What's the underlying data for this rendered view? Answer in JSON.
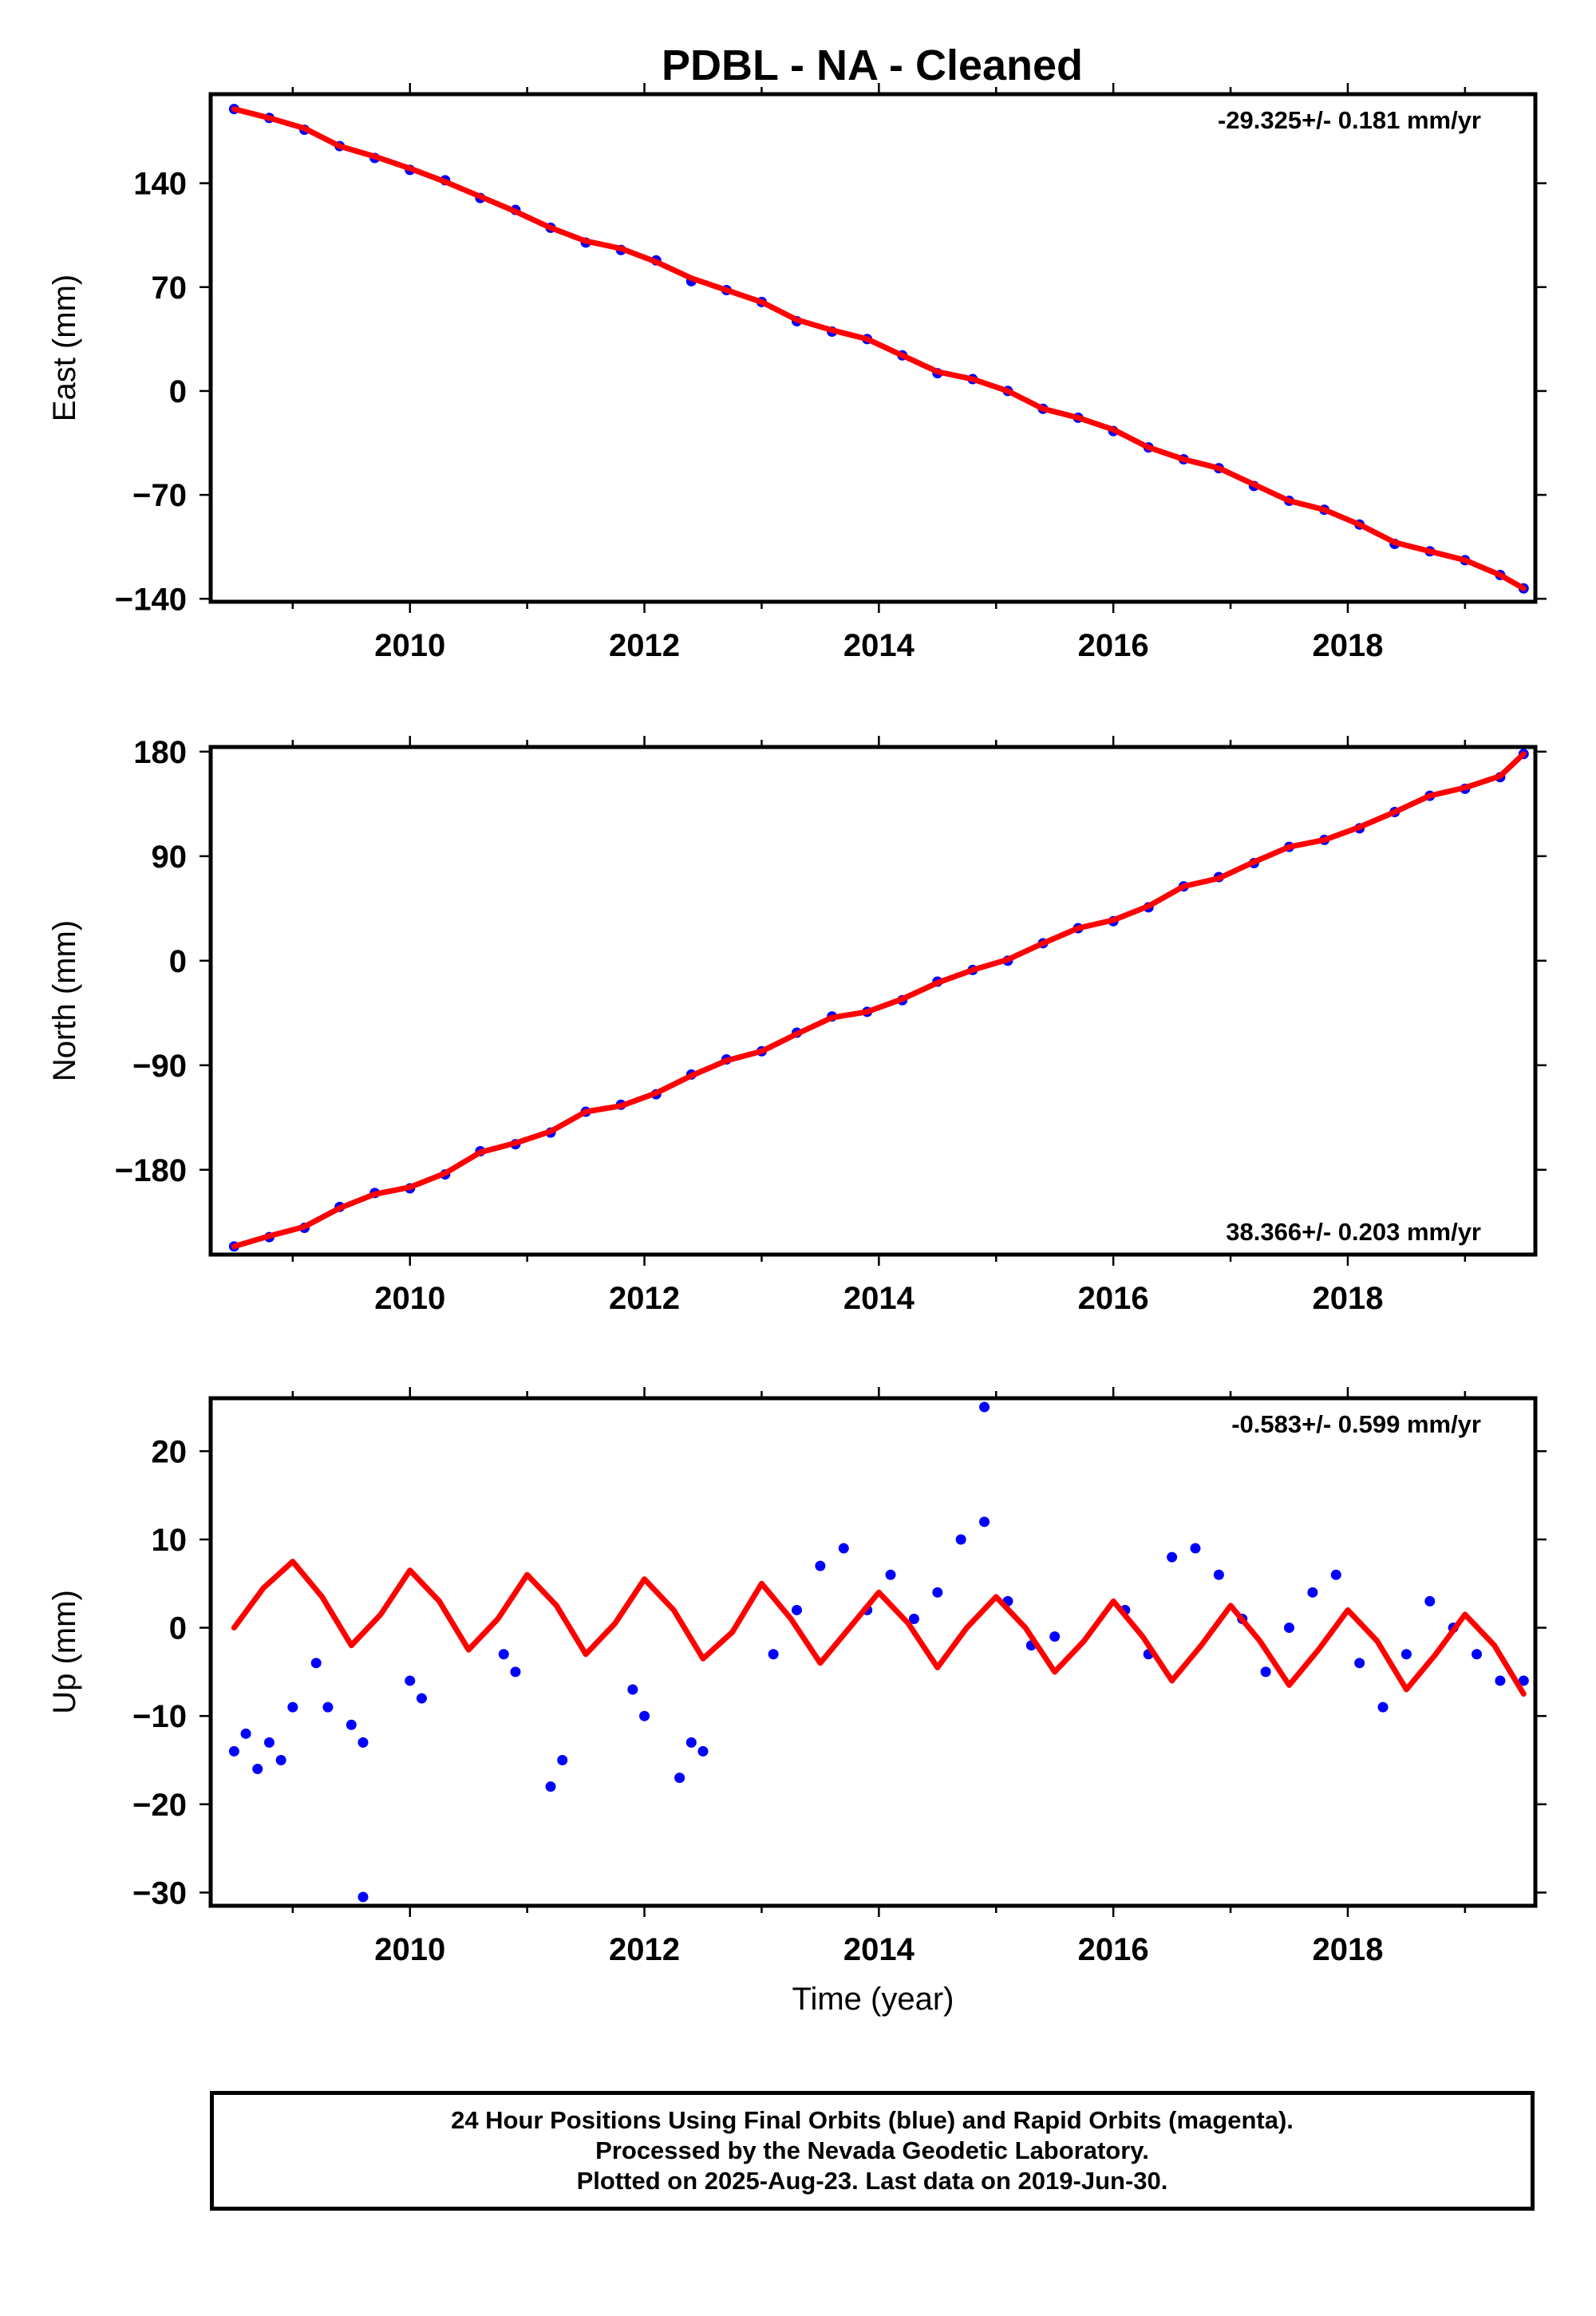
{
  "chart_data": [
    {
      "type": "scatter",
      "title": "PDBL  - NA - Cleaned",
      "ylabel": "East (mm)",
      "xlabel": "",
      "rate_label": "-29.325+/- 0.181 mm/yr",
      "xlim": [
        2008.3,
        2019.6
      ],
      "ylim": [
        -142,
        200
      ],
      "x_ticks": [
        2010,
        2012,
        2014,
        2016,
        2018
      ],
      "y_ticks": [
        -140,
        -70,
        0,
        70,
        140
      ],
      "grid": false,
      "series": [
        {
          "name": "",
          "color": "#0000ff",
          "style": "points",
          "x": [
            2008.5,
            2008.8,
            2009.1,
            2009.4,
            2009.7,
            2010.0,
            2010.3,
            2010.6,
            2010.9,
            2011.2,
            2011.5,
            2011.8,
            2012.1,
            2012.4,
            2012.7,
            2013.0,
            2013.3,
            2013.6,
            2013.9,
            2014.2,
            2014.5,
            2014.8,
            2015.1,
            2015.4,
            2015.7,
            2016.0,
            2016.3,
            2016.6,
            2016.9,
            2017.2,
            2017.5,
            2017.8,
            2018.1,
            2018.4,
            2018.7,
            2019.0,
            2019.3,
            2019.5
          ],
          "y": [
            190,
            184,
            176,
            165,
            157,
            149,
            142,
            130,
            122,
            110,
            100,
            95,
            88,
            74,
            68,
            60,
            47,
            40,
            35,
            24,
            12,
            8,
            0,
            -12,
            -18,
            -27,
            -38,
            -46,
            -52,
            -64,
            -74,
            -80,
            -90,
            -103,
            -108,
            -114,
            -124,
            -133
          ]
        },
        {
          "name": "",
          "color": "#ff0000",
          "style": "line",
          "x": [
            2008.5,
            2008.8,
            2009.1,
            2009.4,
            2009.7,
            2010.0,
            2010.3,
            2010.6,
            2010.9,
            2011.2,
            2011.5,
            2011.8,
            2012.1,
            2012.4,
            2012.7,
            2013.0,
            2013.3,
            2013.6,
            2013.9,
            2014.2,
            2014.5,
            2014.8,
            2015.1,
            2015.4,
            2015.7,
            2016.0,
            2016.3,
            2016.6,
            2016.9,
            2017.2,
            2017.5,
            2017.8,
            2018.1,
            2018.4,
            2018.7,
            2019.0,
            2019.3,
            2019.5
          ],
          "y": [
            190,
            184,
            177,
            165,
            158,
            150,
            141,
            131,
            121,
            110,
            101,
            96,
            87,
            76,
            68,
            60,
            48,
            41,
            35,
            24,
            13,
            8,
            0,
            -12,
            -18,
            -26,
            -38,
            -46,
            -52,
            -63,
            -74,
            -80,
            -90,
            -102,
            -108,
            -114,
            -124,
            -133
          ]
        }
      ]
    },
    {
      "type": "scatter",
      "title": "",
      "ylabel": "North (mm)",
      "xlabel": "",
      "rate_label": "38.366+/- 0.203 mm/yr",
      "xlim": [
        2008.3,
        2019.6
      ],
      "ylim": [
        -253,
        184
      ],
      "x_ticks": [
        2010,
        2012,
        2014,
        2016,
        2018
      ],
      "y_ticks": [
        -180,
        -90,
        0,
        90,
        180
      ],
      "grid": false,
      "series": [
        {
          "name": "",
          "color": "#0000ff",
          "style": "points",
          "x": [
            2008.5,
            2008.8,
            2009.1,
            2009.4,
            2009.7,
            2010.0,
            2010.3,
            2010.6,
            2010.9,
            2011.2,
            2011.5,
            2011.8,
            2012.1,
            2012.4,
            2012.7,
            2013.0,
            2013.3,
            2013.6,
            2013.9,
            2014.2,
            2014.5,
            2014.8,
            2015.1,
            2015.4,
            2015.7,
            2016.0,
            2016.3,
            2016.6,
            2016.9,
            2017.2,
            2017.5,
            2017.8,
            2018.1,
            2018.4,
            2018.7,
            2019.0,
            2019.3,
            2019.5
          ],
          "y": [
            -246,
            -238,
            -230,
            -212,
            -200,
            -196,
            -184,
            -164,
            -158,
            -148,
            -130,
            -124,
            -115,
            -98,
            -85,
            -78,
            -62,
            -48,
            -44,
            -34,
            -18,
            -8,
            0,
            15,
            28,
            34,
            46,
            64,
            72,
            84,
            98,
            104,
            114,
            128,
            142,
            148,
            158,
            178
          ]
        },
        {
          "name": "",
          "color": "#ff0000",
          "style": "line",
          "x": [
            2008.5,
            2008.8,
            2009.1,
            2009.4,
            2009.7,
            2010.0,
            2010.3,
            2010.6,
            2010.9,
            2011.2,
            2011.5,
            2011.8,
            2012.1,
            2012.4,
            2012.7,
            2013.0,
            2013.3,
            2013.6,
            2013.9,
            2014.2,
            2014.5,
            2014.8,
            2015.1,
            2015.4,
            2015.7,
            2016.0,
            2016.3,
            2016.6,
            2016.9,
            2017.2,
            2017.5,
            2017.8,
            2018.1,
            2018.4,
            2018.7,
            2019.0,
            2019.3,
            2019.5
          ],
          "y": [
            -246,
            -237,
            -229,
            -213,
            -201,
            -195,
            -183,
            -165,
            -157,
            -147,
            -130,
            -125,
            -114,
            -99,
            -86,
            -78,
            -63,
            -49,
            -44,
            -33,
            -19,
            -8,
            1,
            15,
            28,
            35,
            47,
            64,
            71,
            85,
            98,
            104,
            115,
            128,
            142,
            149,
            159,
            178
          ]
        }
      ]
    },
    {
      "type": "scatter",
      "title": "",
      "ylabel": "Up (mm)",
      "xlabel": "Time (year)",
      "rate_label": "-0.583+/- 0.599 mm/yr",
      "xlim": [
        2008.3,
        2019.6
      ],
      "ylim": [
        -31.5,
        26
      ],
      "x_ticks": [
        2010,
        2012,
        2014,
        2016,
        2018
      ],
      "y_ticks": [
        -30,
        -20,
        -10,
        0,
        10,
        20
      ],
      "grid": false,
      "series": [
        {
          "name": "",
          "color": "#0000ff",
          "style": "points",
          "x": [
            2008.5,
            2008.6,
            2008.7,
            2008.8,
            2008.9,
            2009.0,
            2009.2,
            2009.3,
            2009.5,
            2009.6,
            2010.0,
            2010.1,
            2010.8,
            2010.9,
            2011.2,
            2011.3,
            2011.9,
            2012.0,
            2012.3,
            2012.4,
            2012.5,
            2013.1,
            2013.3,
            2013.5,
            2013.7,
            2013.9,
            2014.1,
            2014.3,
            2014.5,
            2014.7,
            2014.9,
            2015.1,
            2015.3,
            2015.5,
            2016.1,
            2016.3,
            2016.5,
            2016.7,
            2016.9,
            2017.1,
            2017.3,
            2017.5,
            2017.7,
            2017.9,
            2018.1,
            2018.3,
            2018.5,
            2018.7,
            2018.9,
            2019.1,
            2019.3,
            2019.5,
            2009.6,
            2014.9
          ],
          "y": [
            -14,
            -12,
            -16,
            -13,
            -15,
            -9,
            -4,
            -9,
            -11,
            -13,
            -6,
            -8,
            -3,
            -5,
            -18,
            -15,
            -7,
            -10,
            -17,
            -13,
            -14,
            -3,
            2,
            7,
            9,
            2,
            6,
            1,
            4,
            10,
            12,
            3,
            -2,
            -1,
            2,
            -3,
            8,
            9,
            6,
            1,
            -5,
            0,
            4,
            6,
            -4,
            -9,
            -3,
            3,
            0,
            -3,
            -6,
            -6,
            -30.5,
            25
          ]
        },
        {
          "name": "",
          "color": "#ff0000",
          "style": "line",
          "x": [
            2008.5,
            2008.75,
            2009.0,
            2009.25,
            2009.5,
            2009.75,
            2010.0,
            2010.25,
            2010.5,
            2010.75,
            2011.0,
            2011.25,
            2011.5,
            2011.75,
            2012.0,
            2012.25,
            2012.5,
            2012.75,
            2013.0,
            2013.25,
            2013.5,
            2013.75,
            2014.0,
            2014.25,
            2014.5,
            2014.75,
            2015.0,
            2015.25,
            2015.5,
            2015.75,
            2016.0,
            2016.25,
            2016.5,
            2016.75,
            2017.0,
            2017.25,
            2017.5,
            2017.75,
            2018.0,
            2018.25,
            2018.5,
            2018.75,
            2019.0,
            2019.25,
            2019.5
          ],
          "y": [
            0,
            4.5,
            7.5,
            3.5,
            -2,
            1.5,
            6.5,
            3,
            -2.5,
            1,
            6,
            2.5,
            -3,
            0.5,
            5.5,
            2,
            -3.5,
            -0.5,
            5,
            1,
            -4,
            0,
            4,
            0.5,
            -4.5,
            0,
            3.5,
            0,
            -5,
            -1.5,
            3,
            -1,
            -6,
            -2,
            2.5,
            -1.5,
            -6.5,
            -2.5,
            2,
            -1.5,
            -7,
            -3,
            1.5,
            -2,
            -7.5
          ]
        }
      ]
    }
  ],
  "footer": {
    "line1": "24 Hour Positions Using Final Orbits (blue) and Rapid Orbits (magenta).",
    "line2": "Processed by the Nevada Geodetic Laboratory.",
    "line3": "Plotted on 2025-Aug-23. Last data on 2019-Jun-30."
  }
}
